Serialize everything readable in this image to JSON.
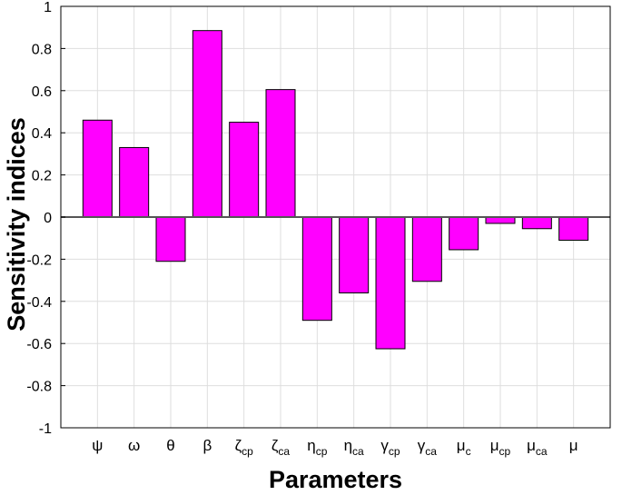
{
  "chart_data": {
    "type": "bar",
    "xlabel": "Parameters",
    "ylabel": "Sensitivity indices",
    "ylim": [
      -1,
      1
    ],
    "yticks": [
      -1,
      -0.8,
      -0.6,
      -0.4,
      -0.2,
      0,
      0.2,
      0.4,
      0.6,
      0.8,
      1
    ],
    "ytick_labels": [
      "-1",
      "-0.8",
      "-0.6",
      "-0.4",
      "-0.2",
      "0",
      "0.2",
      "0.4",
      "0.6",
      "0.8",
      "1"
    ],
    "grid": true,
    "bar_color": "#ff00ff",
    "categories": [
      {
        "main": "ψ",
        "sub": ""
      },
      {
        "main": "ω",
        "sub": ""
      },
      {
        "main": "θ",
        "sub": ""
      },
      {
        "main": "β",
        "sub": ""
      },
      {
        "main": "ζ",
        "sub": "cp"
      },
      {
        "main": "ζ",
        "sub": "ca"
      },
      {
        "main": "η",
        "sub": "cp"
      },
      {
        "main": "η",
        "sub": "ca"
      },
      {
        "main": "γ",
        "sub": "cp"
      },
      {
        "main": "γ",
        "sub": "ca"
      },
      {
        "main": "μ",
        "sub": "c"
      },
      {
        "main": "μ",
        "sub": "cp"
      },
      {
        "main": "μ",
        "sub": "ca"
      },
      {
        "main": "μ",
        "sub": ""
      }
    ],
    "values": [
      0.46,
      0.33,
      -0.21,
      0.885,
      0.45,
      0.605,
      -0.49,
      -0.36,
      -0.625,
      -0.305,
      -0.155,
      -0.03,
      -0.055,
      -0.11
    ]
  }
}
